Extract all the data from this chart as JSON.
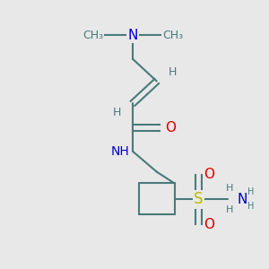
{
  "background_color": "#e8e8e8",
  "bond_color": "#4a7a7a",
  "N_color": "#0000cc",
  "O_color": "#dd0000",
  "S_color": "#bbbb00",
  "H_color": "#4a7a7a",
  "line_width": 1.5,
  "figsize": [
    3.0,
    3.0
  ],
  "dpi": 100,
  "xlim": [
    0,
    300
  ],
  "ylim": [
    0,
    300
  ]
}
